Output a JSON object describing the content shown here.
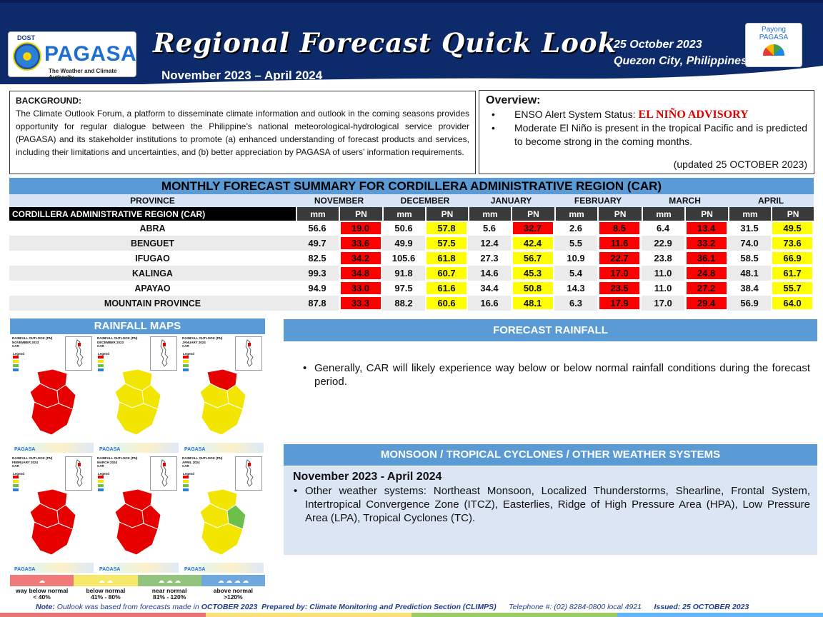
{
  "header": {
    "logo_dost": "DOST",
    "logo_name": "PAGASA",
    "logo_subtitle": "The Weather and Climate Authority",
    "title": "Regional Forecast Quick Look",
    "period": "November 2023 – April 2024",
    "date": "25 October 2023",
    "place": "Quezon City, Philippines",
    "payong_line1": "Payong",
    "payong_line2": "PAGASA"
  },
  "background": {
    "title": "BACKGROUND:",
    "text": "The Climate Outlook Forum, a platform to disseminate climate information and outlook in the coming seasons provides opportunity for regular dialogue between the Philippine’s national meteorological-hydrological service provider (PAGASA) and its stakeholder institutions to promote (a) enhanced understanding of forecast products and services, including their limitations and uncertainties, and (b) better appreciation by PAGASA of users’ information requirements."
  },
  "overview": {
    "title": "Overview:",
    "enso_label": "ENSO Alert System Status:",
    "enso_status": "EL NIÑO ADVISORY",
    "point2": "Moderate El Niño is present in the tropical Pacific and is predicted to become strong in the coming months.",
    "updated": "(updated 25 OCTOBER 2023)"
  },
  "table": {
    "title": "MONTHLY FORECAST SUMMARY FOR CORDILLERA ADMINISTRATIVE REGION (CAR)",
    "province_header": "PROVINCE",
    "region_label": "CORDILLERA ADMINISTRATIVE REGION (CAR)",
    "unit_mm": "mm",
    "unit_pn": "PN",
    "months": [
      "NOVEMBER",
      "DECEMBER",
      "JANUARY",
      "FEBRUARY",
      "MARCH",
      "APRIL"
    ],
    "rows": [
      {
        "province": "ABRA",
        "values": [
          [
            "56.6",
            "19.0",
            "red"
          ],
          [
            "50.6",
            "57.8",
            "yellow"
          ],
          [
            "5.6",
            "32.7",
            "red"
          ],
          [
            "2.6",
            "8.5",
            "red"
          ],
          [
            "6.4",
            "13.4",
            "red"
          ],
          [
            "31.5",
            "49.5",
            "yellow"
          ]
        ]
      },
      {
        "province": "BENGUET",
        "values": [
          [
            "49.7",
            "33.6",
            "red"
          ],
          [
            "49.9",
            "57.5",
            "yellow"
          ],
          [
            "12.4",
            "42.4",
            "yellow"
          ],
          [
            "5.5",
            "11.6",
            "red"
          ],
          [
            "22.9",
            "33.2",
            "red"
          ],
          [
            "74.0",
            "73.6",
            "yellow"
          ]
        ]
      },
      {
        "province": "IFUGAO",
        "values": [
          [
            "82.5",
            "34.2",
            "red"
          ],
          [
            "105.6",
            "61.8",
            "yellow"
          ],
          [
            "27.3",
            "56.7",
            "yellow"
          ],
          [
            "10.9",
            "22.7",
            "red"
          ],
          [
            "23.8",
            "36.1",
            "red"
          ],
          [
            "58.5",
            "66.9",
            "yellow"
          ]
        ]
      },
      {
        "province": "KALINGA",
        "values": [
          [
            "99.3",
            "34.8",
            "red"
          ],
          [
            "91.8",
            "60.7",
            "yellow"
          ],
          [
            "14.6",
            "45.3",
            "yellow"
          ],
          [
            "5.4",
            "17.0",
            "red"
          ],
          [
            "11.0",
            "24.8",
            "red"
          ],
          [
            "48.1",
            "61.7",
            "yellow"
          ]
        ]
      },
      {
        "province": "APAYAO",
        "values": [
          [
            "94.9",
            "33.0",
            "red"
          ],
          [
            "97.5",
            "61.6",
            "yellow"
          ],
          [
            "34.4",
            "50.8",
            "yellow"
          ],
          [
            "14.3",
            "23.5",
            "red"
          ],
          [
            "11.0",
            "27.2",
            "red"
          ],
          [
            "38.4",
            "55.7",
            "yellow"
          ]
        ]
      },
      {
        "province": "MOUNTAIN PROVINCE",
        "values": [
          [
            "87.8",
            "33.3",
            "red"
          ],
          [
            "88.2",
            "60.6",
            "yellow"
          ],
          [
            "16.6",
            "48.1",
            "yellow"
          ],
          [
            "6.3",
            "17.9",
            "red"
          ],
          [
            "17.0",
            "29.4",
            "red"
          ],
          [
            "56.9",
            "64.0",
            "yellow"
          ]
        ]
      }
    ]
  },
  "maps": {
    "header": "RAINFALL MAPS",
    "panels": [
      {
        "title": "RAINFALL OUTLOOK (PN)",
        "month": "NOVEMBER 2023",
        "region": "CAR",
        "fill": "red"
      },
      {
        "title": "RAINFALL OUTLOOK (PN)",
        "month": "DECEMBER 2023",
        "region": "CAR",
        "fill": "yellow"
      },
      {
        "title": "RAINFALL OUTLOOK (PN)",
        "month": "JANUARY 2024",
        "region": "CAR",
        "fill": "mixed-ry"
      },
      {
        "title": "RAINFALL OUTLOOK (PN)",
        "month": "FEBRUARY 2024",
        "region": "CAR",
        "fill": "red"
      },
      {
        "title": "RAINFALL OUTLOOK (PN)",
        "month": "MARCH 2024",
        "region": "CAR",
        "fill": "red"
      },
      {
        "title": "RAINFALL OUTLOOK (PN)",
        "month": "APRIL 2024",
        "region": "CAR",
        "fill": "yellow-green"
      }
    ],
    "panel_legend": "Legend",
    "panel_logo": "PAGASA",
    "legend": [
      {
        "label1": "way below normal",
        "label2": "< 40%",
        "color": "#f07a7a"
      },
      {
        "label1": "below normal",
        "label2": "41%  -  80%",
        "color": "#f5e86a"
      },
      {
        "label1": "near normal",
        "label2": "81% - 120%",
        "color": "#93c47d"
      },
      {
        "label1": "above normal",
        "label2": ">120%",
        "color": "#6fa8dc"
      }
    ]
  },
  "forecast": {
    "header": "FORECAST RAINFALL",
    "text": "Generally, CAR will likely experience way below or below normal rainfall conditions during the forecast period."
  },
  "monsoon": {
    "header": "MONSOON  / TROPICAL CYCLONES / OTHER WEATHER SYSTEMS",
    "period": "November 2023 - April 2024",
    "text": "Other weather systems: Northeast Monsoon, Localized Thunderstorms, Shearline, Frontal System, Intertropical Convergence Zone (ITCZ), Easterlies, Ridge of High Pressure Area (HPA), Low Pressure Area (LPA), Tropical Cyclones (TC)."
  },
  "footer": {
    "note_label": "Note:",
    "note_text": "Outlook was based from forecasts made in",
    "note_month": "OCTOBER 2023",
    "prepared": "Prepared by: Climate Monitoring and Prediction Section (CLIMPS)",
    "telephone": "Telephone #: (02) 8284-0800 local 4921",
    "issued": "Issued: 25 OCTOBER 2023"
  },
  "colors": {
    "navy": "#0d2a6b",
    "accent_blue": "#5b9bd5",
    "pn_red": "#ff0000",
    "pn_yellow": "#ffff00"
  }
}
